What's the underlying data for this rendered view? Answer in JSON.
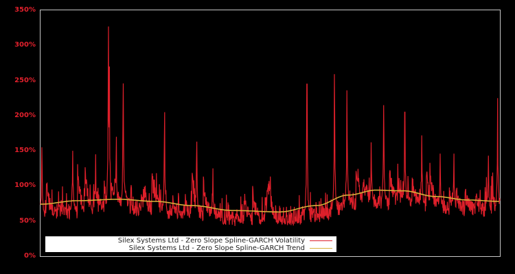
{
  "chart_data": {
    "type": "line",
    "title": "",
    "xlabel": "",
    "ylabel": "",
    "ylim": [
      0,
      350
    ],
    "y_unit": "%",
    "yticks": [
      0,
      50,
      100,
      150,
      200,
      250,
      300,
      350
    ],
    "ytick_labels": [
      "0%",
      "50%",
      "100%",
      "150%",
      "200%",
      "250%",
      "300%",
      "350%"
    ],
    "grid": false,
    "legend_position": "lower-left inside plot",
    "background": "#000000",
    "axis_color": "#c8c8c8",
    "tick_label_color": "#e0202c",
    "series": [
      {
        "name": "Silex Systems Ltd - Zero Slope Spline-GARCH Volatility",
        "color": "#dd1f2a",
        "style": "line",
        "description": "Daily volatility, baseline mostly 50-90% with frequent spikes",
        "notable_peaks": [
          {
            "x_frac": 0.003,
            "value": 155
          },
          {
            "x_frac": 0.07,
            "value": 150
          },
          {
            "x_frac": 0.12,
            "value": 145
          },
          {
            "x_frac": 0.148,
            "value": 327
          },
          {
            "x_frac": 0.15,
            "value": 270
          },
          {
            "x_frac": 0.165,
            "value": 170
          },
          {
            "x_frac": 0.18,
            "value": 246
          },
          {
            "x_frac": 0.27,
            "value": 205
          },
          {
            "x_frac": 0.34,
            "value": 163
          },
          {
            "x_frac": 0.375,
            "value": 125
          },
          {
            "x_frac": 0.58,
            "value": 245
          },
          {
            "x_frac": 0.64,
            "value": 259
          },
          {
            "x_frac": 0.667,
            "value": 236
          },
          {
            "x_frac": 0.72,
            "value": 162
          },
          {
            "x_frac": 0.747,
            "value": 215
          },
          {
            "x_frac": 0.793,
            "value": 205
          },
          {
            "x_frac": 0.83,
            "value": 172
          },
          {
            "x_frac": 0.87,
            "value": 146
          },
          {
            "x_frac": 0.9,
            "value": 146
          },
          {
            "x_frac": 0.975,
            "value": 143
          },
          {
            "x_frac": 0.995,
            "value": 225
          }
        ]
      },
      {
        "name": "Silex Systems Ltd - Zero Slope Spline-GARCH Trend",
        "color": "#d9b03a",
        "style": "line",
        "points": [
          {
            "x_frac": 0.0,
            "value": 74
          },
          {
            "x_frac": 0.08,
            "value": 79
          },
          {
            "x_frac": 0.17,
            "value": 81
          },
          {
            "x_frac": 0.25,
            "value": 78
          },
          {
            "x_frac": 0.33,
            "value": 72
          },
          {
            "x_frac": 0.42,
            "value": 65
          },
          {
            "x_frac": 0.52,
            "value": 63
          },
          {
            "x_frac": 0.6,
            "value": 72
          },
          {
            "x_frac": 0.67,
            "value": 87
          },
          {
            "x_frac": 0.73,
            "value": 94
          },
          {
            "x_frac": 0.79,
            "value": 93
          },
          {
            "x_frac": 0.86,
            "value": 85
          },
          {
            "x_frac": 0.93,
            "value": 80
          },
          {
            "x_frac": 1.0,
            "value": 78
          }
        ]
      }
    ]
  },
  "legend": {
    "items": [
      {
        "label": "Silex Systems Ltd - Zero Slope Spline-GARCH Volatility",
        "color": "#dd1f2a"
      },
      {
        "label": "Silex Systems Ltd - Zero Slope Spline-GARCH Trend",
        "color": "#d9b03a"
      }
    ]
  }
}
